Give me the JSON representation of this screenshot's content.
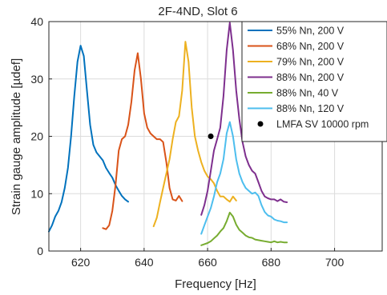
{
  "chart_data": {
    "type": "line",
    "title": "2F-4ND, Slot 6",
    "xlabel": "Frequency [Hz]",
    "ylabel": "Strain gauge amplitude [µdef]",
    "xlim": [
      610,
      715
    ],
    "ylim": [
      0,
      40
    ],
    "xticks": [
      620,
      640,
      660,
      680,
      700
    ],
    "yticks": [
      0,
      10,
      20,
      30,
      40
    ],
    "grid": true,
    "legend_position": "top-right",
    "series": [
      {
        "name": "55% Nn, 200 V",
        "color": "#0072BD",
        "x": [
          610,
          611,
          612,
          613,
          614,
          615,
          616,
          617,
          618,
          619,
          620,
          621,
          622,
          623,
          624,
          625,
          626,
          627,
          628,
          629,
          630,
          631,
          632,
          633,
          634,
          635
        ],
        "y": [
          3.4,
          4.5,
          6.0,
          7.0,
          8.5,
          11.0,
          14.5,
          20.0,
          27.0,
          33.0,
          35.8,
          34.0,
          28.0,
          22.0,
          18.5,
          17.2,
          16.5,
          15.8,
          14.5,
          13.6,
          12.8,
          11.5,
          10.5,
          9.6,
          9.0,
          8.6
        ]
      },
      {
        "name": "68% Nn, 200 V",
        "color": "#D95319",
        "x": [
          627,
          628,
          629,
          630,
          631,
          632,
          633,
          634,
          635,
          636,
          637,
          638,
          639,
          640,
          641,
          642,
          643,
          644,
          645,
          646,
          647,
          648,
          649,
          650,
          651,
          652
        ],
        "y": [
          4.0,
          3.8,
          4.5,
          7.0,
          11.5,
          17.5,
          19.5,
          20.0,
          22.0,
          26.0,
          31.5,
          34.5,
          30.0,
          24.0,
          21.5,
          20.5,
          20.0,
          19.5,
          19.5,
          19.0,
          15.5,
          11.0,
          9.0,
          8.8,
          9.6,
          8.7
        ]
      },
      {
        "name": "79% Nn, 200 V",
        "color": "#EDB120",
        "x": [
          643,
          644,
          645,
          646,
          647,
          648,
          649,
          650,
          651,
          652,
          653,
          654,
          655,
          656,
          657,
          658,
          659,
          660,
          661,
          662,
          663,
          664,
          665,
          666,
          667,
          668,
          669
        ],
        "y": [
          4.3,
          5.8,
          8.5,
          11.0,
          13.5,
          16.0,
          19.5,
          22.5,
          23.5,
          28.0,
          36.5,
          33.0,
          25.0,
          20.0,
          17.5,
          15.5,
          14.0,
          13.0,
          12.5,
          11.8,
          10.5,
          9.5,
          9.5,
          9.0,
          8.6,
          9.5,
          8.8
        ]
      },
      {
        "name": "88% Nn, 200 V",
        "color": "#7E2F8E",
        "x": [
          658,
          659,
          660,
          661,
          662,
          663,
          664,
          665,
          666,
          667,
          668,
          669,
          670,
          671,
          672,
          673,
          674,
          675,
          676,
          677,
          678,
          679,
          680,
          681,
          682,
          683,
          684,
          685
        ],
        "y": [
          6.3,
          8.0,
          10.5,
          14.0,
          17.5,
          19.5,
          21.5,
          27.0,
          35.0,
          39.8,
          35.0,
          28.0,
          23.0,
          19.0,
          16.5,
          15.0,
          14.0,
          13.5,
          12.0,
          10.5,
          9.5,
          9.2,
          9.0,
          9.0,
          8.7,
          9.0,
          8.6,
          8.5
        ]
      },
      {
        "name": "88% Nn, 40 V",
        "color": "#77AC30",
        "x": [
          658,
          659,
          660,
          661,
          662,
          663,
          664,
          665,
          666,
          667,
          668,
          669,
          670,
          671,
          672,
          673,
          674,
          675,
          676,
          677,
          678,
          679,
          680,
          681,
          682,
          683,
          684,
          685
        ],
        "y": [
          1.0,
          1.2,
          1.4,
          1.7,
          2.2,
          2.7,
          3.4,
          4.0,
          5.2,
          6.7,
          6.0,
          4.6,
          3.7,
          3.2,
          2.7,
          2.4,
          2.3,
          2.0,
          1.9,
          1.8,
          1.7,
          1.6,
          1.5,
          1.7,
          1.5,
          1.6,
          1.5,
          1.5
        ]
      },
      {
        "name": "88% Nn, 120 V",
        "color": "#4DBEEE",
        "x": [
          658,
          659,
          660,
          661,
          662,
          663,
          664,
          665,
          666,
          667,
          668,
          669,
          670,
          671,
          672,
          673,
          674,
          675,
          676,
          677,
          678,
          679,
          680,
          681,
          682,
          683,
          684,
          685
        ],
        "y": [
          3.0,
          4.5,
          6.0,
          7.5,
          9.5,
          12.0,
          13.5,
          16.0,
          20.5,
          22.5,
          20.0,
          16.0,
          13.5,
          12.0,
          11.0,
          10.5,
          10.0,
          10.2,
          9.6,
          8.0,
          6.8,
          6.2,
          6.0,
          5.5,
          5.3,
          5.2,
          5.0,
          5.0
        ]
      },
      {
        "name": "LMFA SV 10000 rpm",
        "color": "#000000",
        "marker": "dot",
        "x": [
          661
        ],
        "y": [
          20
        ]
      }
    ]
  }
}
